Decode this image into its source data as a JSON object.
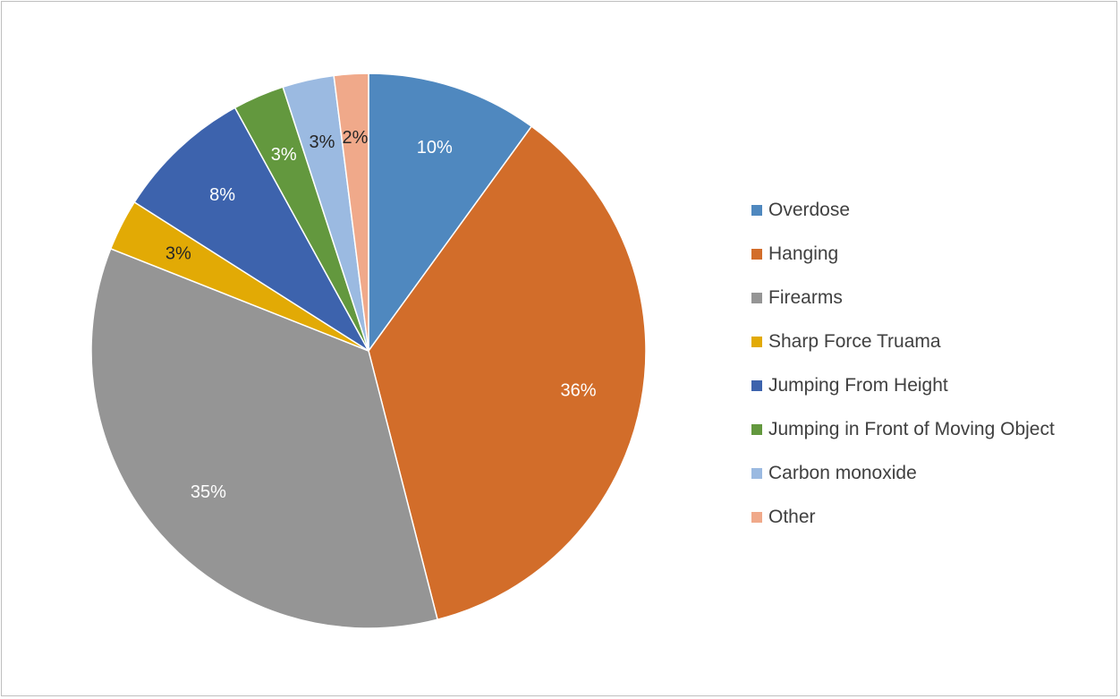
{
  "chart_data": {
    "type": "pie",
    "title": "",
    "legend_position": "right",
    "start_angle_deg": 0,
    "direction": "clockwise",
    "slices": [
      {
        "label": "Overdose",
        "value": 10,
        "data_label": "10%",
        "color": "#4f88bf",
        "label_color": "#ffffff"
      },
      {
        "label": "Hanging",
        "value": 36,
        "data_label": "36%",
        "color": "#d26d2a",
        "label_color": "#ffffff"
      },
      {
        "label": "Firearms",
        "value": 35,
        "data_label": "35%",
        "color": "#959595",
        "label_color": "#ffffff"
      },
      {
        "label": "Sharp Force Truama",
        "value": 3,
        "data_label": "3%",
        "color": "#e2aa05",
        "label_color": "#262626"
      },
      {
        "label": "Jumping From Height",
        "value": 8,
        "data_label": "8%",
        "color": "#3d63ad",
        "label_color": "#ffffff"
      },
      {
        "label": "Jumping in Front of Moving Object",
        "value": 3,
        "data_label": "3%",
        "color": "#63983e",
        "label_color": "#ffffff"
      },
      {
        "label": "Carbon monoxide",
        "value": 3,
        "data_label": "3%",
        "color": "#9bbae1",
        "label_color": "#262626"
      },
      {
        "label": "Other",
        "value": 2,
        "data_label": "2%",
        "color": "#f0a98a",
        "label_color": "#262626"
      }
    ]
  }
}
